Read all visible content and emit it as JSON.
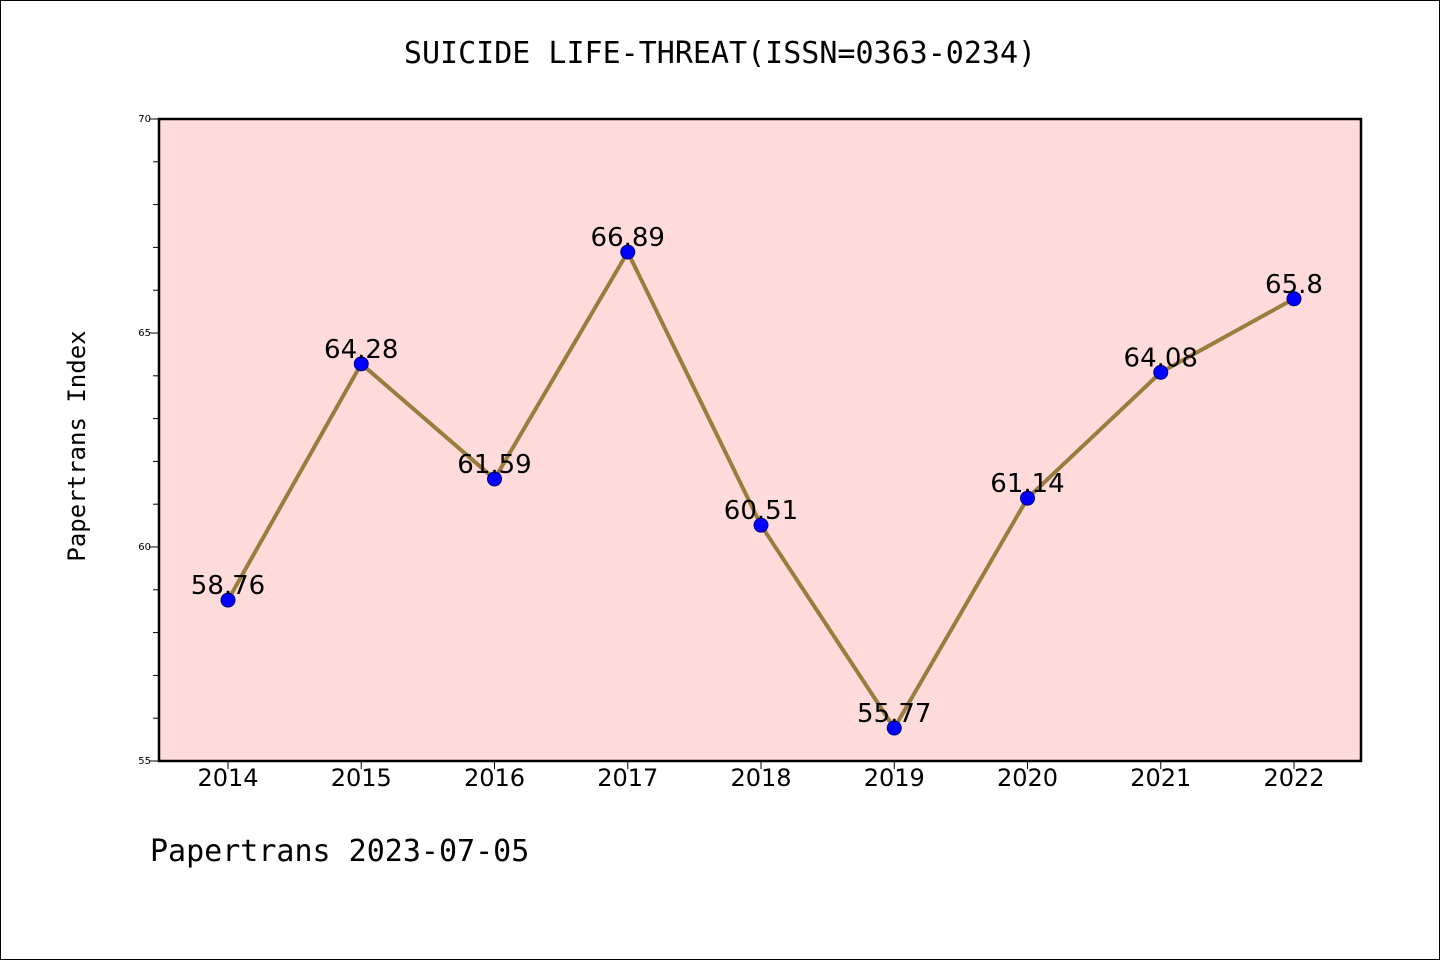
{
  "page": {
    "footer": "Papertrans 2023-07-05"
  },
  "chart_data": {
    "type": "line",
    "title": "SUICIDE LIFE-THREAT(ISSN=0363-0234)",
    "xlabel": "",
    "ylabel": "Papertrans Index",
    "categories": [
      "2014",
      "2015",
      "2016",
      "2017",
      "2018",
      "2019",
      "2020",
      "2021",
      "2022"
    ],
    "values": [
      58.76,
      64.28,
      61.59,
      66.89,
      60.51,
      55.77,
      61.14,
      64.08,
      65.8
    ],
    "data_labels": [
      "58.76",
      "64.28",
      "61.59",
      "66.89",
      "60.51",
      "55.77",
      "61.14",
      "64.08",
      "65.8"
    ],
    "ylim": [
      55,
      70
    ],
    "yticks": [
      55,
      60,
      65,
      70
    ],
    "grid": false,
    "colors": {
      "plot_background": "#ffdcdb",
      "line": "#9a7d3c",
      "marker": "#0000ff",
      "marker_edge": "#00008b"
    }
  }
}
